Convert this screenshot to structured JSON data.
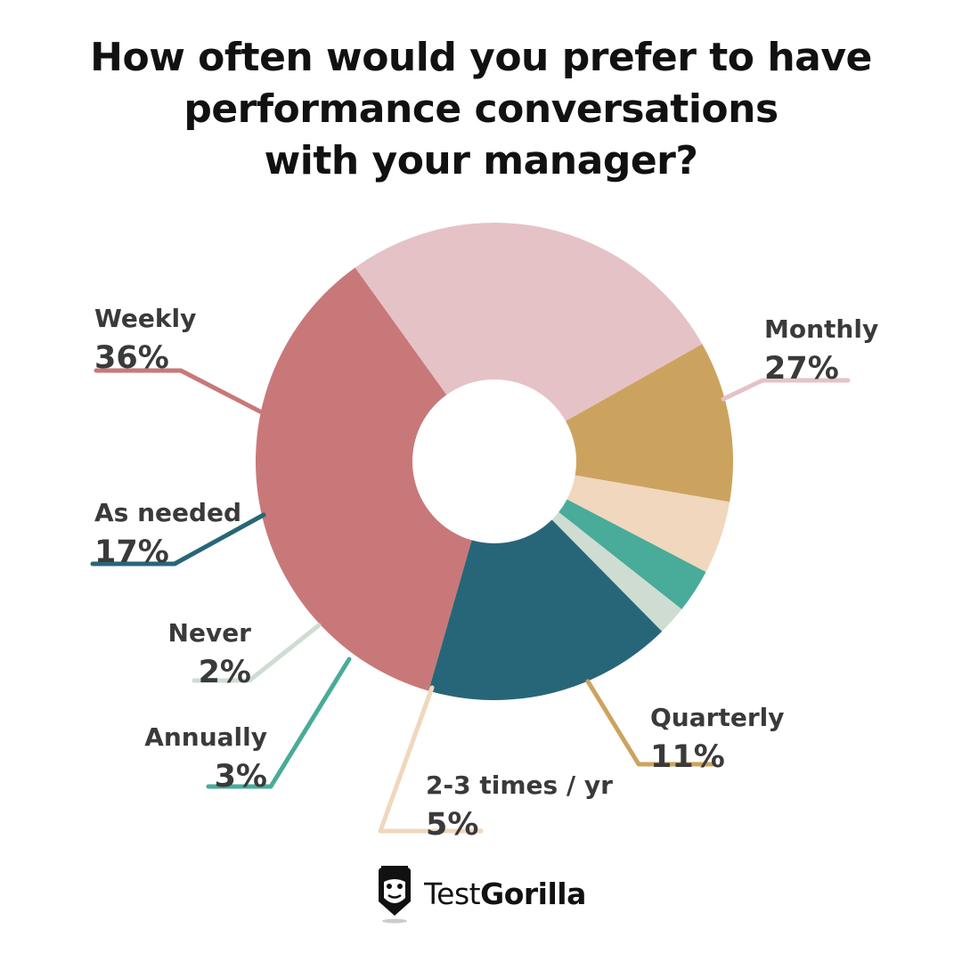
{
  "title_lines": [
    "How often would you prefer to have",
    "performance conversations",
    "with your manager?"
  ],
  "brand": {
    "name_light": "Test",
    "name_bold": "Gorilla",
    "logo_icon": "gorilla-icon"
  },
  "chart_data": {
    "type": "pie",
    "style": "donut",
    "title": "How often would you prefer to have performance conversations with your manager?",
    "unit": "%",
    "slices": [
      {
        "label": "Weekly",
        "value": 36,
        "value_label": "36%",
        "color": "#c97879"
      },
      {
        "label": "Monthly",
        "value": 27,
        "value_label": "27%",
        "color": "#e5c2c6"
      },
      {
        "label": "Quarterly",
        "value": 11,
        "value_label": "11%",
        "color": "#cca35e"
      },
      {
        "label": "2-3 times / yr",
        "value": 5,
        "value_label": "5%",
        "color": "#f0d7bd"
      },
      {
        "label": "Annually",
        "value": 3,
        "value_label": "3%",
        "color": "#49ab99"
      },
      {
        "label": "Never",
        "value": 2,
        "value_label": "2%",
        "color": "#cfdcd2"
      },
      {
        "label": "As needed",
        "value": 17,
        "value_label": "17%",
        "color": "#276678"
      }
    ],
    "legend": "callout labels"
  }
}
